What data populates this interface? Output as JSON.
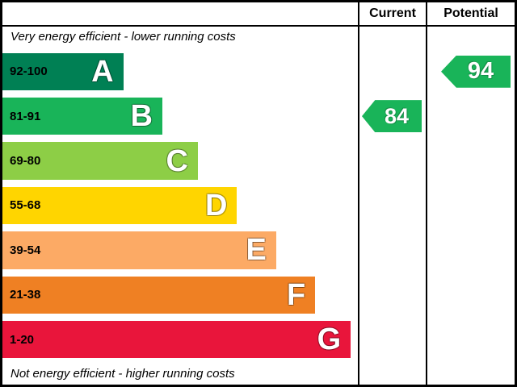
{
  "header": {
    "current": "Current",
    "potential": "Potential"
  },
  "captions": {
    "top": "Very energy efficient - lower running costs",
    "bottom": "Not energy efficient - higher running costs"
  },
  "chart_data": {
    "type": "bar",
    "kind": "energy-efficiency-rating-scale",
    "bands": [
      {
        "letter": "A",
        "range": "92-100",
        "color": "#008054",
        "width_pct": 34
      },
      {
        "letter": "B",
        "range": "81-91",
        "color": "#19b459",
        "width_pct": 45
      },
      {
        "letter": "C",
        "range": "69-80",
        "color": "#8dce46",
        "width_pct": 55
      },
      {
        "letter": "D",
        "range": "55-68",
        "color": "#ffd500",
        "width_pct": 66
      },
      {
        "letter": "E",
        "range": "39-54",
        "color": "#fcaa65",
        "width_pct": 77
      },
      {
        "letter": "F",
        "range": "21-38",
        "color": "#ef8023",
        "width_pct": 88
      },
      {
        "letter": "G",
        "range": "1-20",
        "color": "#e9153b",
        "width_pct": 98
      }
    ],
    "current": {
      "value": "84",
      "band_index": 1,
      "arrow_color": "#19b459"
    },
    "potential": {
      "value": "94",
      "band_index": 0,
      "arrow_color": "#19b459"
    }
  }
}
